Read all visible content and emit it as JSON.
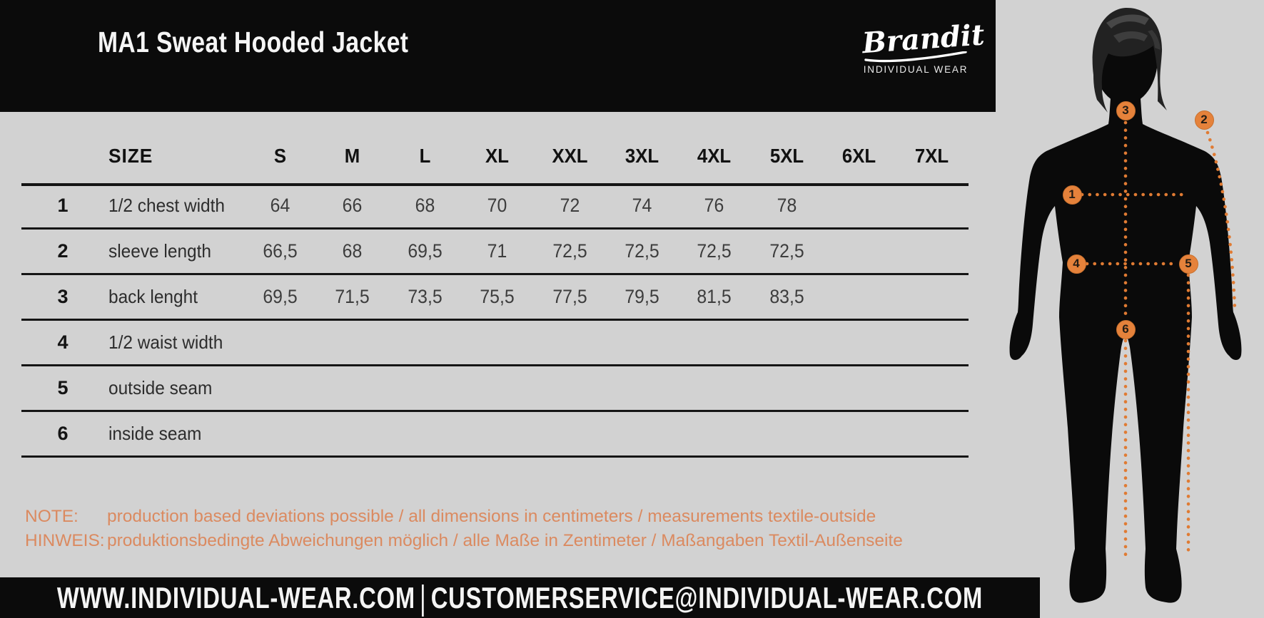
{
  "header": {
    "title": "MA1 Sweat Hooded Jacket",
    "brand": {
      "name": "Brandit",
      "tagline": "INDIVIDUAL WEAR"
    }
  },
  "size_table": {
    "size_label": "SIZE",
    "sizes": [
      "S",
      "M",
      "L",
      "XL",
      "XXL",
      "3XL",
      "4XL",
      "5XL",
      "6XL",
      "7XL"
    ],
    "rows": [
      {
        "num": "1",
        "label": "1/2 chest width",
        "values": [
          "64",
          "66",
          "68",
          "70",
          "72",
          "74",
          "76",
          "78",
          "",
          ""
        ]
      },
      {
        "num": "2",
        "label": "sleeve length",
        "values": [
          "66,5",
          "68",
          "69,5",
          "71",
          "72,5",
          "72,5",
          "72,5",
          "72,5",
          "",
          ""
        ]
      },
      {
        "num": "3",
        "label": "back lenght",
        "values": [
          "69,5",
          "71,5",
          "73,5",
          "75,5",
          "77,5",
          "79,5",
          "81,5",
          "83,5",
          "",
          ""
        ]
      },
      {
        "num": "4",
        "label": "1/2 waist width",
        "values": [
          "",
          "",
          "",
          "",
          "",
          "",
          "",
          "",
          "",
          ""
        ]
      },
      {
        "num": "5",
        "label": "outside seam",
        "values": [
          "",
          "",
          "",
          "",
          "",
          "",
          "",
          "",
          "",
          ""
        ]
      },
      {
        "num": "6",
        "label": "inside seam",
        "values": [
          "",
          "",
          "",
          "",
          "",
          "",
          "",
          "",
          "",
          ""
        ]
      }
    ]
  },
  "notes": {
    "note_label": "NOTE:",
    "note_text": "production based deviations possible / all dimensions in centimeters / measurements textile-outside",
    "hinweis_label": "HINWEIS:",
    "hinweis_text": "produktionsbedingte Abweichungen möglich / alle Maße in Zentimeter / Maßangaben Textil-Außenseite"
  },
  "footer": {
    "website": "WWW.INDIVIDUAL-WEAR.COM",
    "separator": "|",
    "email": "CUSTOMERSERVICE@INDIVIDUAL-WEAR.COM"
  },
  "figure": {
    "markers": [
      {
        "num": "1",
        "meaning": "1/2 chest width"
      },
      {
        "num": "2",
        "meaning": "sleeve length"
      },
      {
        "num": "3",
        "meaning": "back lenght"
      },
      {
        "num": "4",
        "meaning": "1/2 waist width"
      },
      {
        "num": "5",
        "meaning": "outside seam"
      },
      {
        "num": "6",
        "meaning": "inside seam"
      }
    ]
  },
  "colors": {
    "background": "#d2d2d2",
    "bar_black": "#0b0b0b",
    "accent_orange": "#e5823b",
    "dotted_orange": "#e07b33",
    "note_orange": "#db8a60"
  }
}
